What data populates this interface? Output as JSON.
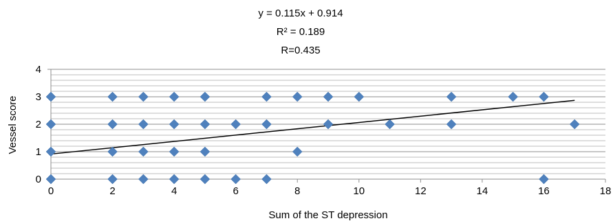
{
  "chart_data": {
    "type": "scatter",
    "annotations": [
      "y = 0.115x + 0.914",
      "R² = 0.189",
      "R=0.435"
    ],
    "xlabel": "Sum of the ST depression",
    "ylabel": "Vessel score",
    "xlim": [
      0,
      18
    ],
    "ylim": [
      0,
      4
    ],
    "x_ticks": [
      "0",
      "2",
      "4",
      "6",
      "8",
      "10",
      "12",
      "14",
      "16",
      "18"
    ],
    "y_ticks": [
      "0",
      "1",
      "2",
      "3",
      "4"
    ],
    "grid": "horizontal",
    "legend": "none",
    "marker": "diamond",
    "marker_color": "#4f81bd",
    "trendline": {
      "slope": 0.115,
      "intercept": 0.914,
      "x_range": [
        0,
        17
      ]
    },
    "points": [
      [
        0,
        3
      ],
      [
        2,
        3
      ],
      [
        3,
        3
      ],
      [
        4,
        3
      ],
      [
        5,
        3
      ],
      [
        7,
        3
      ],
      [
        8,
        3
      ],
      [
        9,
        3
      ],
      [
        10,
        3
      ],
      [
        13,
        3
      ],
      [
        15,
        3
      ],
      [
        16,
        3
      ],
      [
        0,
        2
      ],
      [
        2,
        2
      ],
      [
        3,
        2
      ],
      [
        4,
        2
      ],
      [
        5,
        2
      ],
      [
        6,
        2
      ],
      [
        7,
        2
      ],
      [
        9,
        2
      ],
      [
        11,
        2
      ],
      [
        13,
        2
      ],
      [
        17,
        2
      ],
      [
        0,
        1
      ],
      [
        2,
        1
      ],
      [
        3,
        1
      ],
      [
        4,
        1
      ],
      [
        5,
        1
      ],
      [
        8,
        1
      ],
      [
        0,
        0
      ],
      [
        2,
        0
      ],
      [
        3,
        0
      ],
      [
        4,
        0
      ],
      [
        5,
        0
      ],
      [
        6,
        0
      ],
      [
        7,
        0
      ],
      [
        16,
        0
      ]
    ]
  }
}
